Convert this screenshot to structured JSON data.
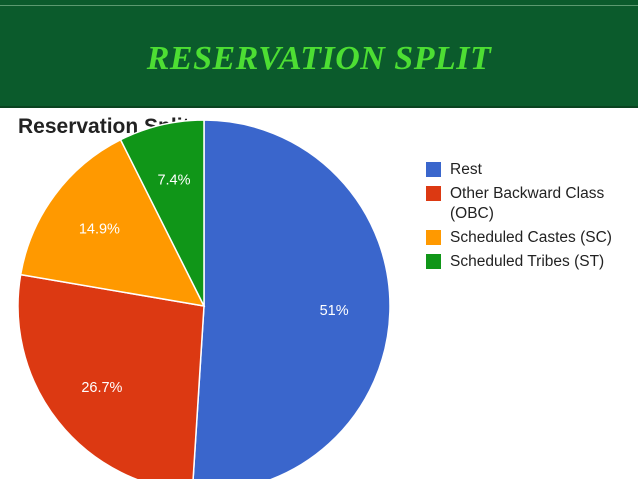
{
  "header": {
    "title": "RESERVATION SPLIT"
  },
  "colors": {
    "banner": "#0b5b2c",
    "banner_title": "#4dde33"
  },
  "chart_data": {
    "type": "pie",
    "title": "Reservation Split",
    "legend_position": "right",
    "slices": [
      {
        "label": "Rest",
        "value": 51,
        "display": "51%",
        "color": "#3a66cc"
      },
      {
        "label": "Other Backward Class (OBC)",
        "value": 26.7,
        "display": "26.7%",
        "color": "#dc3912"
      },
      {
        "label": "Scheduled Castes (SC)",
        "value": 14.9,
        "display": "14.9%",
        "color": "#ff9900"
      },
      {
        "label": "Scheduled Tribes (ST)",
        "value": 7.4,
        "display": "7.4%",
        "color": "#109618"
      }
    ]
  }
}
